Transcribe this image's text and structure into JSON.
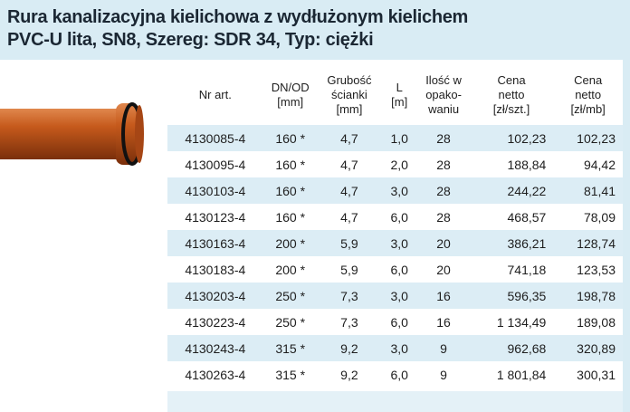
{
  "header": {
    "title": [
      "Rura kanalizacyjna kielichowa z wydłużonym kielichem",
      "PVC-U lita, SN8, Szereg: SDR 34, Typ: ciężki"
    ]
  },
  "table": {
    "columns": [
      "Nr art.",
      "DN/OD\n[mm]",
      "Grubość\nścianki\n[mm]",
      "L\n[m]",
      "Ilość w\nopako-\nwaniu",
      "Cena\nnetto\n[zł/szt.]",
      "Cena\nnetto\n[zł/mb]"
    ],
    "rows": [
      [
        "4130085-4",
        "160 *",
        "4,7",
        "1,0",
        "28",
        "102,23",
        "102,23"
      ],
      [
        "4130095-4",
        "160 *",
        "4,7",
        "2,0",
        "28",
        "188,84",
        "94,42"
      ],
      [
        "4130103-4",
        "160 *",
        "4,7",
        "3,0",
        "28",
        "244,22",
        "81,41"
      ],
      [
        "4130123-4",
        "160 *",
        "4,7",
        "6,0",
        "28",
        "468,57",
        "78,09"
      ],
      [
        "4130163-4",
        "200 *",
        "5,9",
        "3,0",
        "20",
        "386,21",
        "128,74"
      ],
      [
        "4130183-4",
        "200 *",
        "5,9",
        "6,0",
        "20",
        "741,18",
        "123,53"
      ],
      [
        "4130203-4",
        "250 *",
        "7,3",
        "3,0",
        "16",
        "596,35",
        "198,78"
      ],
      [
        "4130223-4",
        "250 *",
        "7,3",
        "6,0",
        "16",
        "1 134,49",
        "189,08"
      ],
      [
        "4130243-4",
        "315 *",
        "9,2",
        "3,0",
        "9",
        "962,68",
        "320,89"
      ],
      [
        "4130263-4",
        "315 *",
        "9,2",
        "6,0",
        "9",
        "1 801,84",
        "300,31"
      ]
    ]
  }
}
